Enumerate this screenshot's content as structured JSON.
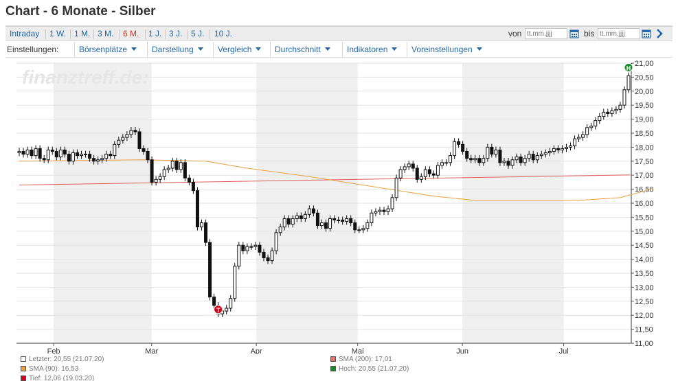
{
  "page": {
    "title": "Chart - 6 Monate - Silber"
  },
  "range_tabs": [
    {
      "label": "Intraday",
      "active": false
    },
    {
      "label": "1 W.",
      "active": false
    },
    {
      "label": "1 M.",
      "active": false
    },
    {
      "label": "3 M.",
      "active": false
    },
    {
      "label": "6 M.",
      "active": true
    },
    {
      "label": "1 J.",
      "active": false
    },
    {
      "label": "3 J.",
      "active": false
    },
    {
      "label": "5 J.",
      "active": false
    },
    {
      "label": "10 J.",
      "active": false
    }
  ],
  "date_range": {
    "from_label": "von",
    "from_placeholder": "tt.mm.jjjj",
    "to_label": "bis",
    "to_placeholder": "tt.mm.jjjj"
  },
  "settings": {
    "label": "Einstellungen:",
    "items": [
      "Börsenplätze",
      "Darstellung",
      "Vergleich",
      "Durchschnitt",
      "Indikatoren",
      "Voreinstellungen"
    ]
  },
  "colors": {
    "accent": "#2466a8",
    "active_tab": "#c0392b",
    "sma200": "#e05a5a",
    "sma90": "#e8a040",
    "high_marker": "#1e8a2e",
    "low_marker": "#d0021b"
  },
  "chart_data": {
    "type": "candlestick",
    "watermark": "finanztreff.de:",
    "ylim": [
      11.0,
      21.0
    ],
    "yticks": [
      "21,00",
      "20,50",
      "20,00",
      "19,50",
      "19,00",
      "18,50",
      "18,00",
      "17,50",
      "17,00",
      "16,50",
      "16,00",
      "15,50",
      "15,00",
      "14,50",
      "14,00",
      "13,50",
      "13,00",
      "12,50",
      "12,00",
      "11,50",
      "11,00"
    ],
    "ytick_values": [
      21.0,
      20.5,
      20.0,
      19.5,
      19.0,
      18.5,
      18.0,
      17.5,
      17.0,
      16.5,
      16.0,
      15.5,
      15.0,
      14.5,
      14.0,
      13.5,
      13.0,
      12.5,
      12.0,
      11.5,
      11.0
    ],
    "x_start": "2020-01-21",
    "x_end": "2020-07-21",
    "xticks": [
      {
        "label": "Feb",
        "date": "2020-02-01"
      },
      {
        "label": "Mar",
        "date": "2020-03-01"
      },
      {
        "label": "Apr",
        "date": "2020-04-01"
      },
      {
        "label": "Mai",
        "date": "2020-05-01"
      },
      {
        "label": "Jun",
        "date": "2020-06-01"
      },
      {
        "label": "Jul",
        "date": "2020-07-01"
      }
    ],
    "shaded_months": [
      [
        "2020-02-01",
        "2020-03-01"
      ],
      [
        "2020-04-01",
        "2020-05-01"
      ],
      [
        "2020-06-01",
        "2020-07-01"
      ]
    ],
    "closes": [
      17.85,
      17.75,
      17.9,
      17.7,
      17.95,
      17.6,
      17.55,
      17.9,
      17.85,
      17.65,
      17.9,
      17.75,
      17.5,
      17.8,
      17.7,
      17.75,
      17.75,
      17.6,
      17.5,
      17.55,
      17.6,
      17.75,
      17.7,
      18.1,
      18.25,
      18.35,
      18.45,
      18.6,
      18.55,
      17.95,
      17.85,
      17.55,
      16.75,
      16.85,
      16.95,
      17.2,
      17.25,
      17.5,
      17.2,
      17.45,
      16.9,
      16.75,
      16.45,
      15.15,
      15.3,
      14.6,
      12.65,
      12.35,
      12.05,
      12.15,
      12.25,
      12.6,
      13.75,
      14.5,
      14.3,
      14.45,
      14.45,
      14.5,
      14.25,
      14.05,
      13.95,
      14.3,
      14.95,
      15.15,
      15.45,
      15.25,
      15.45,
      15.55,
      15.45,
      15.6,
      15.8,
      15.65,
      15.2,
      15.3,
      15.1,
      15.45,
      15.4,
      15.4,
      15.35,
      15.45,
      15.3,
      15.05,
      15.05,
      15.1,
      15.3,
      15.65,
      15.7,
      15.75,
      15.7,
      15.8,
      16.2,
      16.9,
      17.2,
      17.3,
      17.4,
      17.25,
      16.85,
      16.95,
      17.2,
      17.05,
      17.0,
      17.35,
      17.45,
      17.45,
      17.7,
      18.2,
      18.1,
      17.85,
      17.6,
      17.55,
      17.6,
      17.45,
      17.6,
      18.0,
      17.75,
      17.9,
      17.45,
      17.5,
      17.35,
      17.55,
      17.65,
      17.45,
      17.6,
      17.75,
      17.55,
      17.7,
      17.75,
      17.8,
      17.85,
      17.95,
      17.9,
      17.95,
      18.0,
      18.05,
      18.3,
      18.35,
      18.45,
      18.7,
      18.75,
      18.95,
      19.1,
      19.25,
      19.2,
      19.3,
      19.35,
      19.5,
      20.05,
      20.55
    ],
    "sma200": {
      "label": "SMA (200): 17,01",
      "start": 16.65,
      "end": 17.01
    },
    "sma90": {
      "label": "SMA (90): 16,53",
      "points": [
        [
          0,
          17.5
        ],
        [
          30,
          17.55
        ],
        [
          45,
          17.5
        ],
        [
          55,
          17.25
        ],
        [
          70,
          16.95
        ],
        [
          85,
          16.6
        ],
        [
          100,
          16.25
        ],
        [
          110,
          16.1
        ],
        [
          125,
          16.1
        ],
        [
          135,
          16.1
        ],
        [
          145,
          16.2
        ],
        [
          150,
          16.4
        ],
        [
          153,
          16.53
        ]
      ]
    },
    "last": {
      "label": "Letzter: 20,55 (21.07.20)",
      "value": 20.55
    },
    "high": {
      "label": "Hoch: 20,55 (21.07.20)",
      "value": 20.55,
      "marker": "H"
    },
    "low": {
      "label": "Tief: 12,06 (19.03.20)",
      "value": 12.06,
      "marker": "T"
    }
  }
}
